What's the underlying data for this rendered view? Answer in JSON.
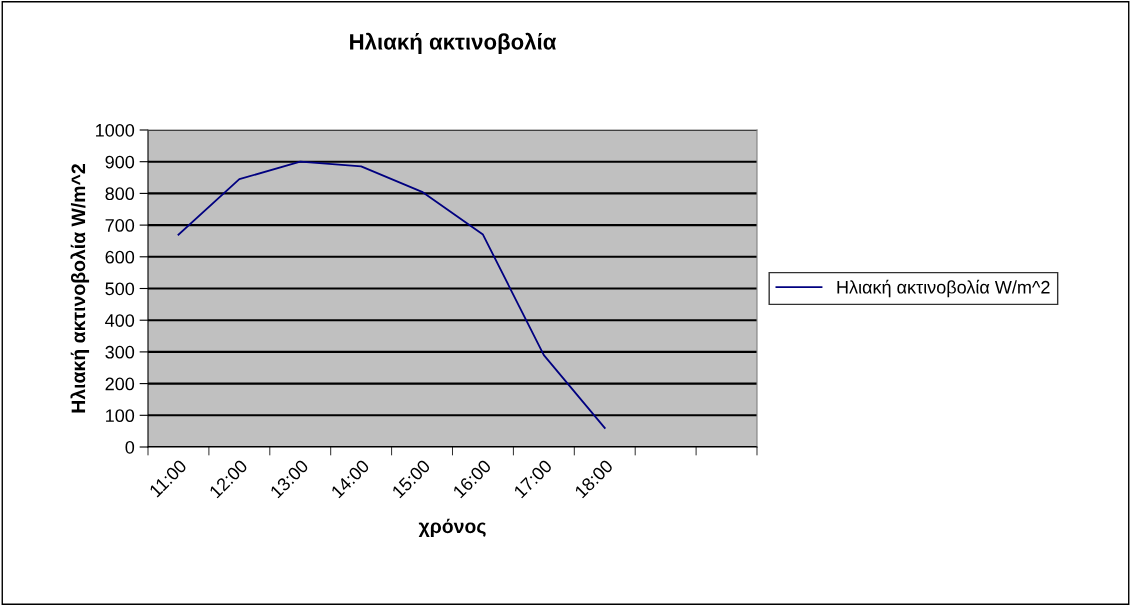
{
  "chart_data": {
    "type": "line",
    "title": "Ηλιακή ακτινοβολία",
    "xlabel": "χρόνος",
    "ylabel": "Ηλιακή ακτινοβολία W/m^2",
    "categories": [
      "11:00",
      "12:00",
      "13:00",
      "14:00",
      "15:00",
      "16:00",
      "17:00",
      "18:00",
      null,
      null
    ],
    "series": [
      {
        "name": "Ηλιακή ακτινοβολία W/m^2",
        "color": "#000080",
        "values": [
          670,
          845,
          900,
          885,
          805,
          670,
          290,
          60,
          null,
          null
        ]
      }
    ],
    "ylim": [
      0,
      1000
    ],
    "yticks": [
      0,
      100,
      200,
      300,
      400,
      500,
      600,
      700,
      800,
      900,
      1000
    ],
    "grid": "y",
    "legend": "right",
    "marker": "none",
    "line_style": "solid"
  }
}
